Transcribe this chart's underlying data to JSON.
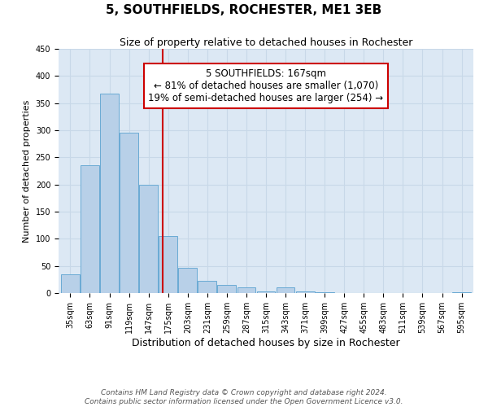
{
  "title": "5, SOUTHFIELDS, ROCHESTER, ME1 3EB",
  "subtitle": "Size of property relative to detached houses in Rochester",
  "xlabel": "Distribution of detached houses by size in Rochester",
  "ylabel": "Number of detached properties",
  "bar_labels": [
    "35sqm",
    "63sqm",
    "91sqm",
    "119sqm",
    "147sqm",
    "175sqm",
    "203sqm",
    "231sqm",
    "259sqm",
    "287sqm",
    "315sqm",
    "343sqm",
    "371sqm",
    "399sqm",
    "427sqm",
    "455sqm",
    "483sqm",
    "511sqm",
    "539sqm",
    "567sqm",
    "595sqm"
  ],
  "bar_values": [
    35,
    236,
    367,
    296,
    199,
    105,
    46,
    22,
    15,
    10,
    3,
    10,
    3,
    1,
    0,
    0,
    0,
    0,
    0,
    0,
    1
  ],
  "bar_color": "#b8d0e8",
  "bar_edgecolor": "#6aaad4",
  "vline_color": "#cc0000",
  "vline_position": 5,
  "annotation_title": "5 SOUTHFIELDS: 167sqm",
  "annotation_line1": "← 81% of detached houses are smaller (1,070)",
  "annotation_line2": "19% of semi-detached houses are larger (254) →",
  "annotation_box_edgecolor": "#cc0000",
  "annotation_box_facecolor": "#ffffff",
  "ylim": [
    0,
    450
  ],
  "yticks": [
    0,
    50,
    100,
    150,
    200,
    250,
    300,
    350,
    400,
    450
  ],
  "grid_color": "#c8d8e8",
  "bg_color": "#dce8f4",
  "footer1": "Contains HM Land Registry data © Crown copyright and database right 2024.",
  "footer2": "Contains public sector information licensed under the Open Government Licence v3.0.",
  "title_fontsize": 11,
  "subtitle_fontsize": 9,
  "xlabel_fontsize": 9,
  "ylabel_fontsize": 8,
  "tick_fontsize": 7,
  "annotation_title_fontsize": 9,
  "annotation_body_fontsize": 8.5,
  "footer_fontsize": 6.5
}
